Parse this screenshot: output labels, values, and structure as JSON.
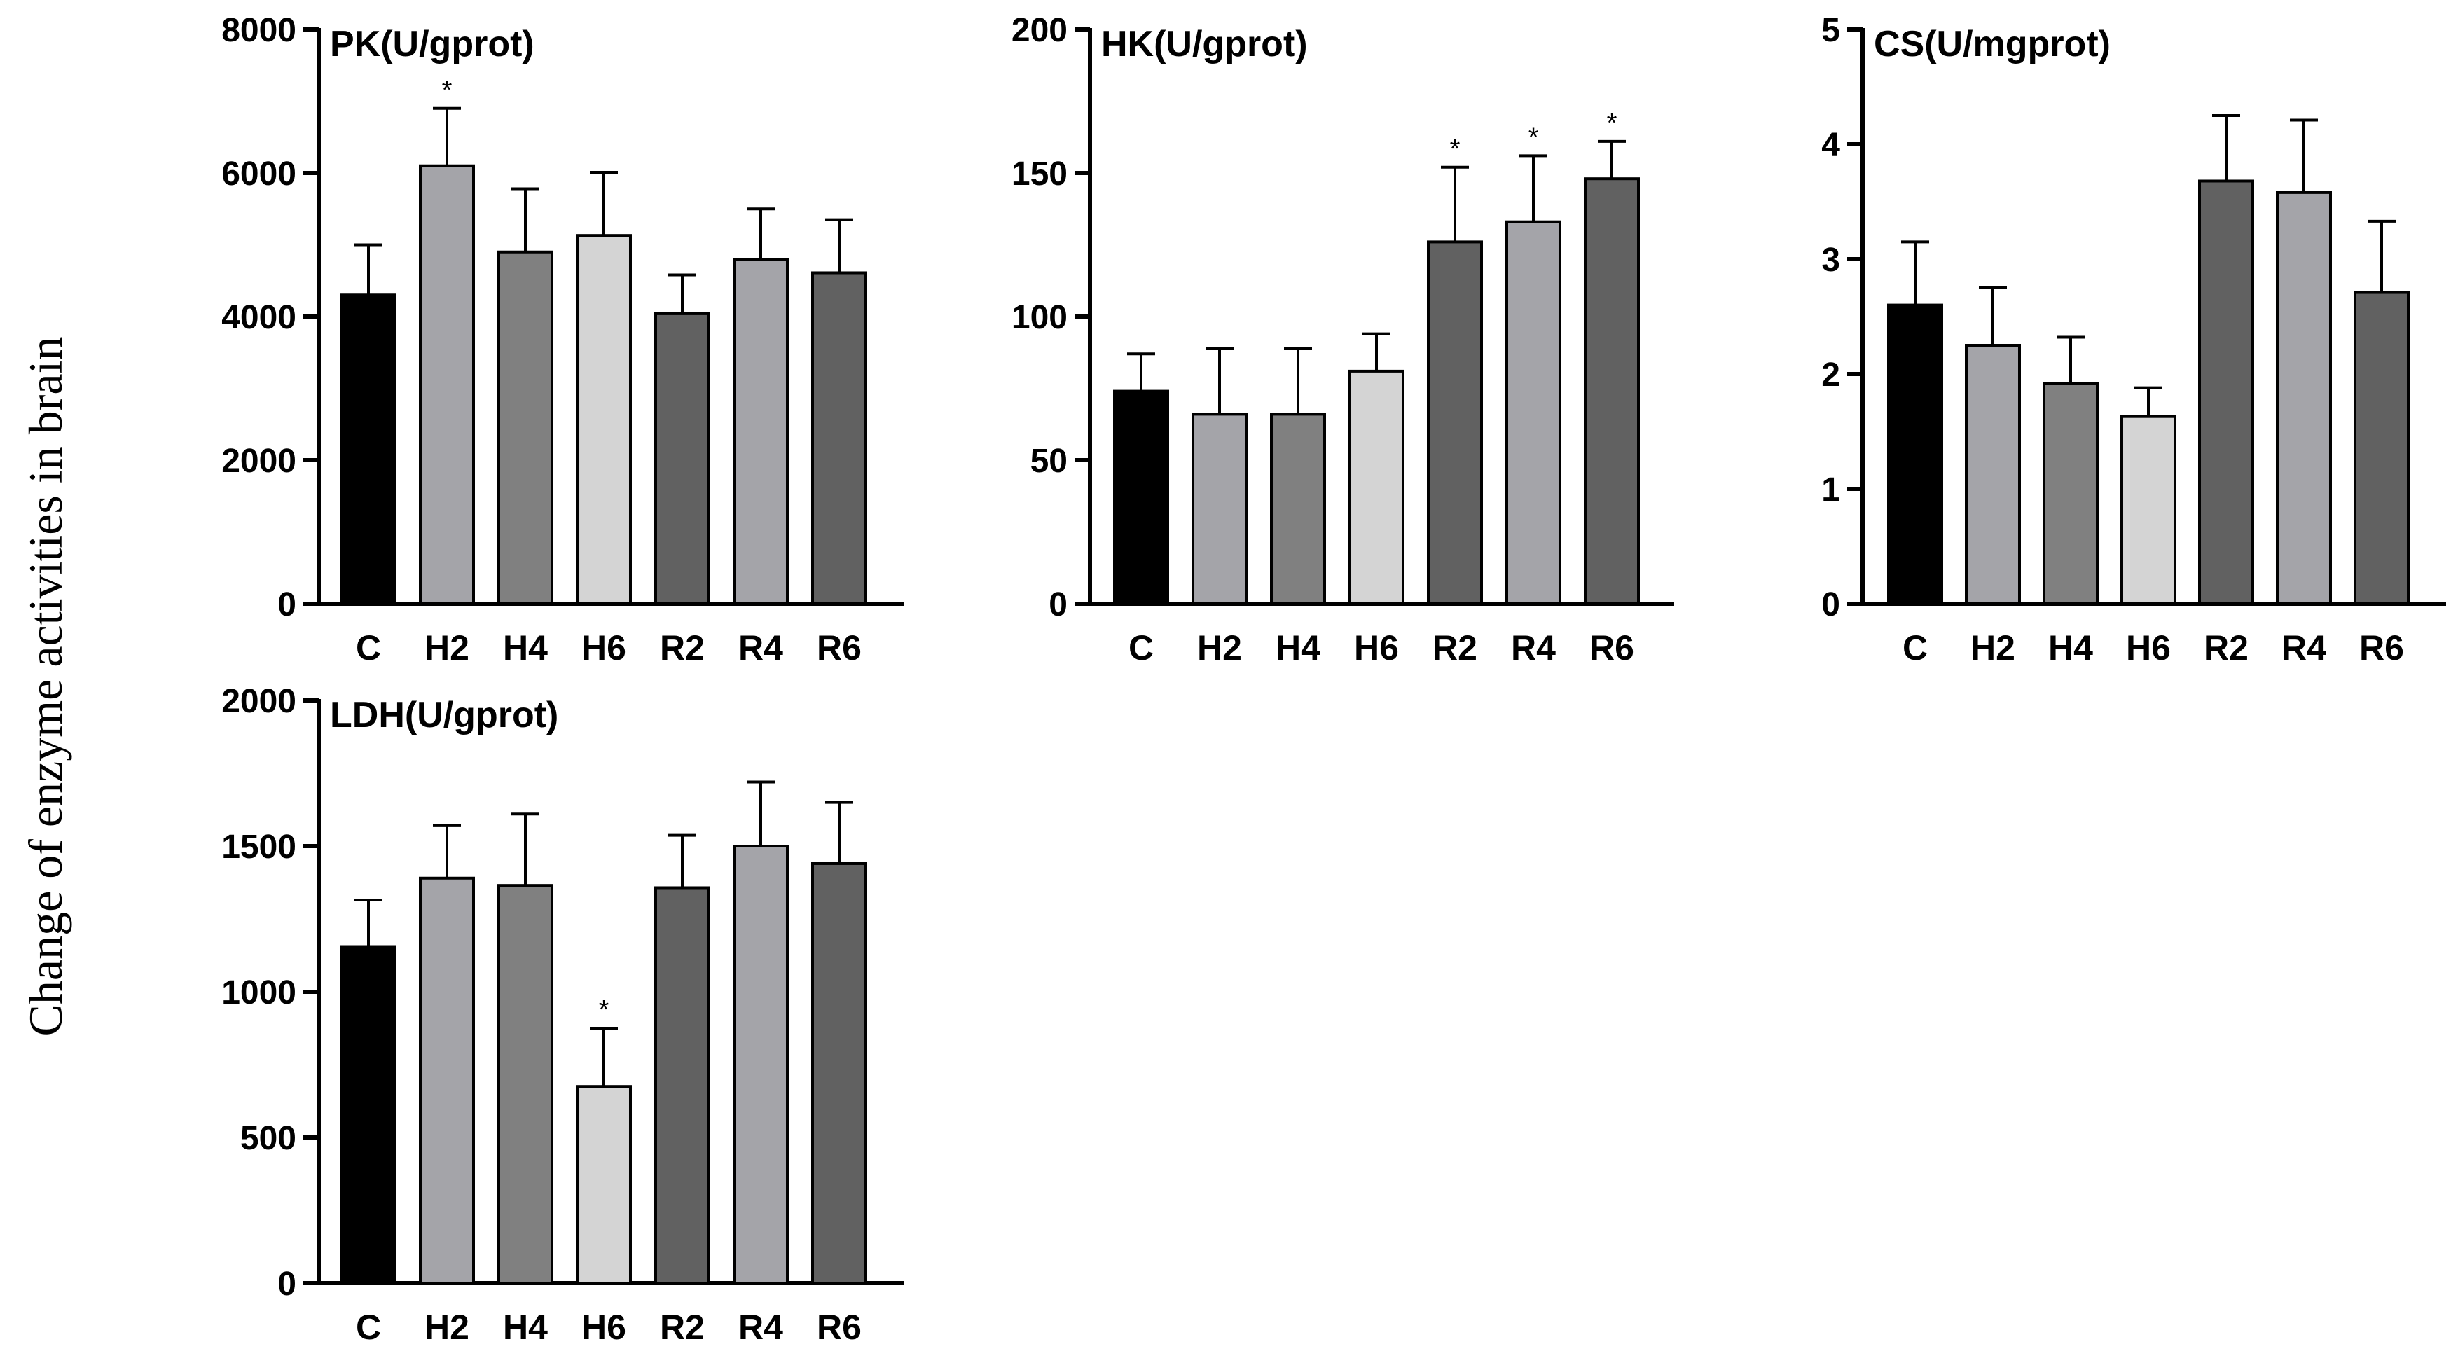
{
  "figure": {
    "ylabel": "Change of enzyme activities in brain"
  },
  "chart_data": [
    {
      "type": "bar",
      "title": "PK(U/gprot)",
      "categories": [
        "C",
        "H2",
        "H4",
        "H6",
        "R2",
        "R4",
        "R6"
      ],
      "values": [
        4300,
        6100,
        4900,
        5130,
        4040,
        4800,
        4610
      ],
      "errors": [
        700,
        800,
        880,
        880,
        540,
        700,
        740
      ],
      "significance": [
        "",
        "*",
        "",
        "",
        "",
        "",
        ""
      ],
      "bar_colors": [
        "#000000",
        "#a4a4a9",
        "#808080",
        "#d4d4d4",
        "#616161",
        "#a4a4a9",
        "#616161"
      ],
      "ylim": [
        0,
        8000
      ],
      "yticks": [
        "0",
        "2000",
        "4000",
        "6000",
        "8000"
      ],
      "xlabel": "",
      "ylabel": ""
    },
    {
      "type": "bar",
      "title": "HK(U/gprot)",
      "categories": [
        "C",
        "H2",
        "H4",
        "H6",
        "R2",
        "R4",
        "R6"
      ],
      "values": [
        74,
        66,
        66,
        81,
        126,
        133,
        148
      ],
      "errors": [
        13,
        23,
        23,
        13,
        26,
        23,
        13
      ],
      "significance": [
        "",
        "",
        "",
        "",
        "*",
        "*",
        "*"
      ],
      "bar_colors": [
        "#000000",
        "#a4a4a9",
        "#808080",
        "#d4d4d4",
        "#616161",
        "#a4a4a9",
        "#616161"
      ],
      "ylim": [
        0,
        200
      ],
      "yticks": [
        "0",
        "50",
        "100",
        "150",
        "200"
      ],
      "xlabel": "",
      "ylabel": ""
    },
    {
      "type": "bar",
      "title": "CS(U/mgprot)",
      "categories": [
        "C",
        "H2",
        "H4",
        "H6",
        "R2",
        "R4",
        "R6"
      ],
      "values": [
        2.6,
        2.25,
        1.92,
        1.63,
        3.68,
        3.58,
        2.71
      ],
      "errors": [
        0.55,
        0.5,
        0.4,
        0.25,
        0.57,
        0.63,
        0.62
      ],
      "significance": [
        "",
        "",
        "",
        "",
        "",
        "",
        ""
      ],
      "bar_colors": [
        "#000000",
        "#a4a4a9",
        "#808080",
        "#d4d4d4",
        "#616161",
        "#a4a4a9",
        "#616161"
      ],
      "ylim": [
        0,
        5
      ],
      "yticks": [
        "0",
        "1",
        "2",
        "3",
        "4",
        "5"
      ],
      "xlabel": "",
      "ylabel": ""
    },
    {
      "type": "bar",
      "title": "LDH(U/gprot)",
      "categories": [
        "C",
        "H2",
        "H4",
        "H6",
        "R2",
        "R4",
        "R6"
      ],
      "values": [
        1155,
        1390,
        1365,
        675,
        1357,
        1500,
        1440
      ],
      "errors": [
        160,
        180,
        245,
        200,
        180,
        220,
        210
      ],
      "significance": [
        "",
        "",
        "",
        "*",
        "",
        "",
        ""
      ],
      "bar_colors": [
        "#000000",
        "#a4a4a9",
        "#808080",
        "#d4d4d4",
        "#616161",
        "#a4a4a9",
        "#616161"
      ],
      "ylim": [
        0,
        2000
      ],
      "yticks": [
        "0",
        "500",
        "1000",
        "1500",
        "2000"
      ],
      "xlabel": "",
      "ylabel": ""
    }
  ]
}
